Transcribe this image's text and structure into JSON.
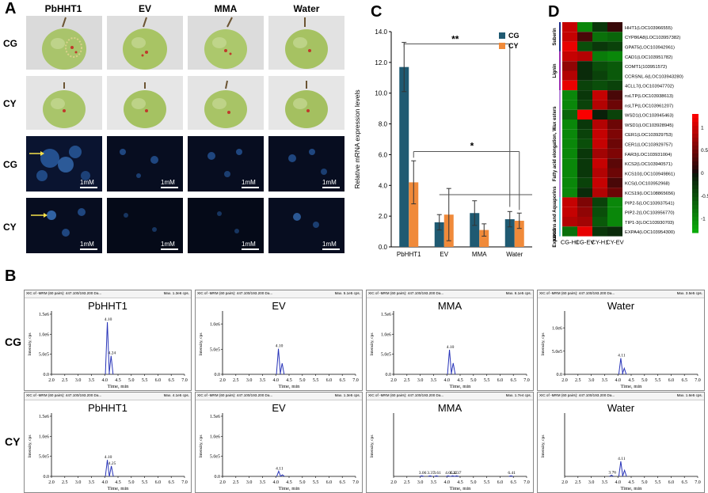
{
  "panels": {
    "a": "A",
    "b": "B",
    "c": "C",
    "d": "D"
  },
  "panel_a": {
    "columns": [
      "PbHHT1",
      "EV",
      "MMA",
      "Water"
    ],
    "rows": [
      "CG",
      "CY",
      "CG",
      "CY"
    ],
    "scale": "1mM"
  },
  "panel_b": {
    "row_labels": [
      "CG",
      "CY"
    ],
    "header_left": "XIC of -MRM (60 pairs): 447.100/193.200 Da...",
    "ylabel": "Intensity, cps",
    "xlabel": "Time, min",
    "xticks": [
      "2.0",
      "2.5",
      "3.0",
      "3.5",
      "4.0",
      "4.5",
      "5.0",
      "5.5",
      "6.0",
      "6.5",
      "7.0"
    ],
    "charts": [
      {
        "title": "PbHHT1",
        "max": "Max. 1.3e6 cps.",
        "yticks": [
          "1.5e6",
          "1.0e6",
          "5.0e5",
          "0.0"
        ],
        "ymax": 1500000.0,
        "peaks": [
          {
            "x": 4.1,
            "h": 1300000.0,
            "label": "4.10"
          },
          {
            "x": 4.24,
            "h": 460000.0,
            "label": "4.24"
          }
        ]
      },
      {
        "title": "EV",
        "max": "Max. 5.1e5 cps.",
        "yticks": [
          "1.0e6",
          "5.0e5",
          "0.0"
        ],
        "ymax": 1200000.0,
        "peaks": [
          {
            "x": 4.1,
            "h": 510000.0,
            "label": "4.10"
          },
          {
            "x": 4.24,
            "h": 220000.0,
            "label": ""
          }
        ]
      },
      {
        "title": "MMA",
        "max": "Max. 6.1e5 cps.",
        "yticks": [
          "1.5e6",
          "1.0e6",
          "5.0e5",
          "0.0"
        ],
        "ymax": 1500000.0,
        "peaks": [
          {
            "x": 4.1,
            "h": 610000.0,
            "label": "4.10"
          },
          {
            "x": 4.24,
            "h": 280000.0,
            "label": ""
          }
        ]
      },
      {
        "title": "Water",
        "max": "Max. 3.5e5 cps.",
        "yticks": [
          "1.0e6",
          "5.0e5",
          "0.0"
        ],
        "ymax": 1300000.0,
        "peaks": [
          {
            "x": 4.11,
            "h": 350000.0,
            "label": "4.11"
          },
          {
            "x": 4.24,
            "h": 130000.0,
            "label": ""
          }
        ]
      },
      {
        "title": "PbHHT1",
        "max": "Max. 4.1e5 cps.",
        "yticks": [
          "1.5e6",
          "1.0e6",
          "5.0e5",
          "0.0"
        ],
        "ymax": 1500000.0,
        "peaks": [
          {
            "x": 4.1,
            "h": 410000.0,
            "label": "4.10"
          },
          {
            "x": 4.25,
            "h": 260000.0,
            "label": "4.25"
          }
        ]
      },
      {
        "title": "EV",
        "max": "Max. 1.3e5 cps.",
        "yticks": [
          "1.5e6",
          "1.0e6",
          "5.0e5",
          "0.0"
        ],
        "ymax": 1500000.0,
        "peaks": [
          {
            "x": 4.11,
            "h": 130000.0,
            "label": "4.11"
          },
          {
            "x": 4.25,
            "h": 40000.0,
            "label": ""
          }
        ]
      },
      {
        "title": "MMA",
        "max": "Max. 1.7e4 cps.",
        "yticks": [],
        "ymax": 1.0,
        "peaks": [
          {
            "x": 3.06,
            "h": 0.01,
            "label": "3.06"
          },
          {
            "x": 3.37,
            "h": 0.01,
            "label": "3.37"
          },
          {
            "x": 3.61,
            "h": 0.01,
            "label": "3.61"
          },
          {
            "x": 4.05,
            "h": 0.01,
            "label": "4.05"
          },
          {
            "x": 4.22,
            "h": 0.01,
            "label": "4.22"
          },
          {
            "x": 4.37,
            "h": 0.01,
            "label": "4.37"
          },
          {
            "x": 6.41,
            "h": 0.01,
            "label": "6.41"
          }
        ]
      },
      {
        "title": "Water",
        "max": "Max. 1.6e5 cps.",
        "yticks": [],
        "ymax": 1.0,
        "peaks": [
          {
            "x": 3.76,
            "h": 0.02,
            "label": "3.76"
          },
          {
            "x": 4.11,
            "h": 0.25,
            "label": "4.11"
          },
          {
            "x": 4.25,
            "h": 0.1,
            "label": ""
          }
        ]
      }
    ]
  },
  "chart_data": {
    "type": "bar",
    "categories": [
      "PbHHT1",
      "EV",
      "MMA",
      "Water"
    ],
    "series": [
      {
        "name": "CG",
        "values": [
          11.7,
          1.6,
          2.2,
          1.8
        ],
        "errors": [
          1.6,
          0.5,
          0.8,
          0.5
        ],
        "color": "#1f5a72"
      },
      {
        "name": "CY",
        "values": [
          4.2,
          2.1,
          1.1,
          1.7
        ],
        "errors": [
          1.4,
          1.7,
          0.4,
          0.5
        ],
        "color": "#f08a3a"
      }
    ],
    "ylabel": "Relative mRNA expression levels",
    "ylim": [
      0,
      14
    ],
    "yticks": [
      "0.0",
      "2.0",
      "4.0",
      "6.0",
      "8.0",
      "10.0",
      "12.0",
      "14.0"
    ],
    "legend": "top-right",
    "annotations": [
      "**",
      "*"
    ]
  },
  "panel_d": {
    "columns": [
      "CG-H1",
      "CG-EV",
      "CY-H1",
      "CY-EV"
    ],
    "genes": [
      "HHT1(LOC103966555)",
      "CYP86A8(LOC103957382)",
      "GPAT5(LOC103942961)",
      "CAD1(LOC103951782)",
      "COMT1(103951572)",
      "CCRSNL-6(LOC103943280)",
      "4CLL7(LOC103947702)",
      "nsLTP(LOC103938613)",
      "nsLTP(LOC103961207)",
      "WSD1(LOC103945463)",
      "WSD1(LOC103928945)",
      "CER1(LOC103929753)",
      "CER1(LOC103929757)",
      "FAR3(LOC103931004)",
      "KCS2(LOC103940571)",
      "KCS10(LOC103949861)",
      "KCS(LOC103952968)",
      "KCS19(LOC108865656)",
      "PIP2-5(LOC103937541)",
      "PIP2-2(LOC103956770)",
      "TIP1-3(LOC103930703)",
      "EXPA4(LOC103954300)"
    ],
    "values": [
      [
        1.0,
        -1.0,
        -0.3,
        0.2
      ],
      [
        1.0,
        0.3,
        -0.8,
        -0.7
      ],
      [
        1.2,
        -0.5,
        -0.3,
        -0.4
      ],
      [
        1.0,
        0.9,
        -0.9,
        -1.0
      ],
      [
        0.7,
        -0.2,
        -0.5,
        -0.6
      ],
      [
        0.9,
        -0.2,
        -0.4,
        -0.6
      ],
      [
        1.2,
        -0.4,
        -0.5,
        -0.4
      ],
      [
        -1.0,
        -0.3,
        1.0,
        0.3
      ],
      [
        -1.0,
        -0.4,
        0.9,
        0.5
      ],
      [
        -0.7,
        1.3,
        -0.1,
        -0.4
      ],
      [
        -1.0,
        -0.3,
        0.9,
        0.5
      ],
      [
        -1.0,
        -0.4,
        1.0,
        0.6
      ],
      [
        -1.0,
        -0.5,
        1.0,
        0.5
      ],
      [
        -1.0,
        -0.3,
        0.8,
        0.6
      ],
      [
        -1.0,
        -0.3,
        1.0,
        0.4
      ],
      [
        -1.0,
        -0.3,
        0.9,
        0.5
      ],
      [
        -1.0,
        -0.4,
        1.0,
        0.3
      ],
      [
        -1.0,
        -0.2,
        0.9,
        0.5
      ],
      [
        1.0,
        0.6,
        -0.4,
        -1.0
      ],
      [
        1.0,
        0.7,
        -0.5,
        -1.0
      ],
      [
        0.9,
        0.8,
        -0.6,
        -1.0
      ],
      [
        -0.8,
        1.2,
        -0.3,
        -0.2
      ]
    ],
    "groups": [
      "Suberin",
      "Lignin",
      "Fatty acid elongation, Wax esters",
      "Expansins and Aquaporins",
      "KEGG"
    ],
    "colorbar_ticks": [
      "1",
      "0.5",
      "0",
      "-0.5",
      "-1"
    ]
  }
}
